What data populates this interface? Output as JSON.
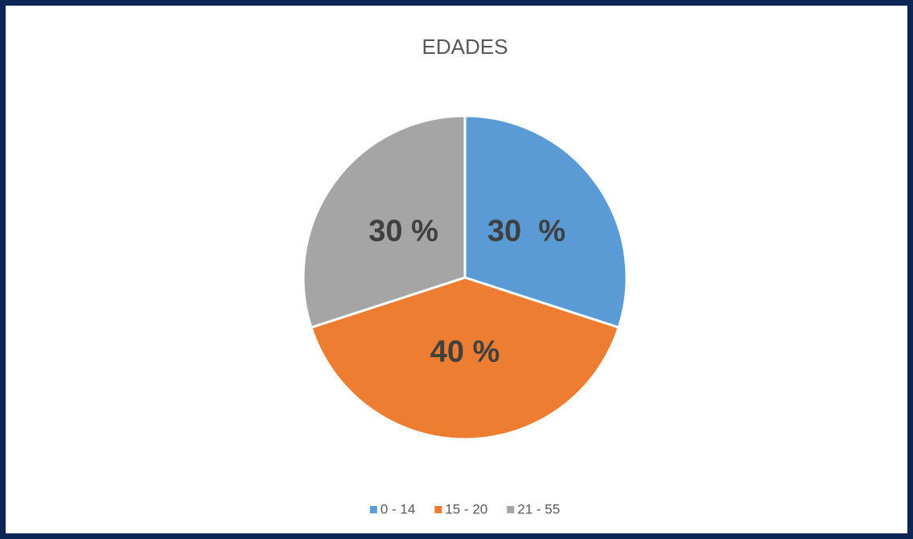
{
  "chart_data": {
    "type": "pie",
    "title": "EDADES",
    "categories": [
      "0 - 14",
      "15 - 20",
      "21 - 55"
    ],
    "values": [
      30,
      40,
      30
    ],
    "value_labels": [
      "30  %",
      "40 %",
      "30 %"
    ],
    "colors": [
      "#5b9bd5",
      "#ed7d31",
      "#a5a5a5"
    ],
    "legend": "bottom"
  }
}
